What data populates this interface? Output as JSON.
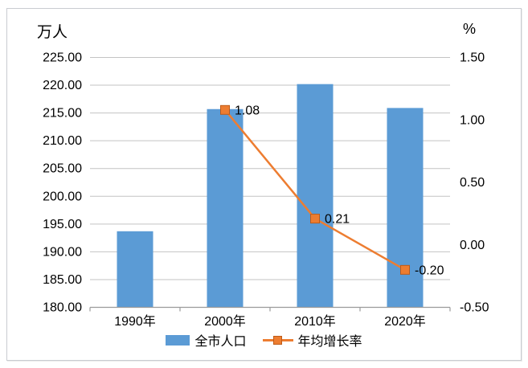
{
  "chart_data": {
    "type": "combo_bar_line",
    "title": "",
    "left_unit": "万人",
    "right_unit": "%",
    "categories": [
      "1990年",
      "2000年",
      "2010年",
      "2020年"
    ],
    "bar_series": {
      "name": "全市人口",
      "axis": "left",
      "color": "#5B9BD5",
      "values": [
        193.7,
        215.7,
        220.2,
        215.9
      ]
    },
    "line_series": {
      "name": "年均增长率",
      "axis": "right",
      "color": "#ED7D31",
      "marker": "square",
      "marker_edge_color": "#BF5B17",
      "values": [
        null,
        1.08,
        0.21,
        -0.2
      ],
      "point_labels": [
        null,
        "1.08",
        "0.21",
        "-0.20"
      ]
    },
    "left_axis": {
      "min": 180,
      "max": 225,
      "step": 5,
      "tick_labels": [
        "225.00",
        "220.00",
        "215.00",
        "210.00",
        "205.00",
        "200.00",
        "195.00",
        "190.00",
        "185.00",
        "180.00"
      ]
    },
    "right_axis": {
      "min": -0.5,
      "max": 1.5,
      "step": 0.5,
      "tick_labels": [
        "1.50",
        "1.00",
        "0.50",
        "0.00",
        "-0.50"
      ]
    },
    "grid": "horizontal",
    "legend_position": "bottom",
    "colors": {
      "gridline": "#C3C3C3",
      "axis_line": "#9B9B9B",
      "text": "#000000",
      "frame_border": "#C9CCD1"
    }
  }
}
